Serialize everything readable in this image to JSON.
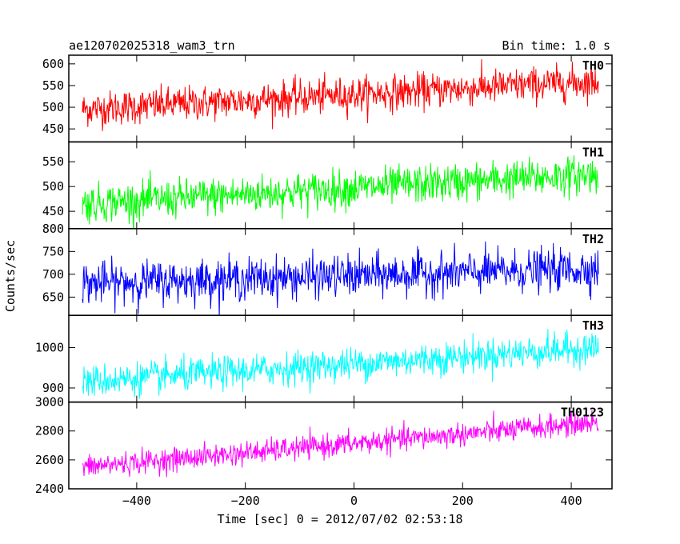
{
  "chart_data": {
    "type": "line",
    "title": "ae120702025318_wam3_trn",
    "subtitle": "Bin time: 1.0 s",
    "xlabel": "Time [sec] 0 = 2012/07/02 02:53:18",
    "ylabel": "Counts/sec",
    "xlim": [
      -525,
      475
    ],
    "x_ticks": [
      -400,
      -200,
      0,
      200,
      400
    ],
    "x_range": [
      -500,
      450
    ],
    "grid": false,
    "panels": [
      {
        "name": "TH0",
        "color": "#ff0000",
        "ylim": [
          420,
          620
        ],
        "yticks": [
          450,
          500,
          550,
          600
        ],
        "trend_start": 495,
        "trend_end": 560,
        "noise_amplitude": 40
      },
      {
        "name": "TH1",
        "color": "#00ff00",
        "ylim": [
          415,
          590
        ],
        "yticks": [
          450,
          500,
          550
        ],
        "trend_start": 465,
        "trend_end": 525,
        "noise_amplitude": 38
      },
      {
        "name": "TH2",
        "color": "#0000ff",
        "ylim": [
          610,
          800
        ],
        "yticks": [
          650,
          700,
          750,
          800
        ],
        "trend_start": 680,
        "trend_end": 712,
        "noise_amplitude": 45
      },
      {
        "name": "TH3",
        "color": "#00ffff",
        "ylim": [
          865,
          1080
        ],
        "yticks": [
          900,
          1000
        ],
        "trend_start": 915,
        "trend_end": 1000,
        "noise_amplitude": 40
      },
      {
        "name": "TH0123",
        "color": "#ff00ff",
        "ylim": [
          2400,
          3000
        ],
        "yticks": [
          2400,
          2600,
          2800,
          3000
        ],
        "trend_start": 2550,
        "trend_end": 2860,
        "noise_amplitude": 80
      }
    ]
  }
}
